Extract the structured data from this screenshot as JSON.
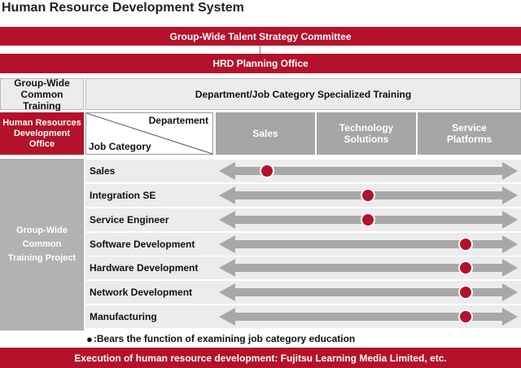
{
  "title": "Human Resource Development System",
  "committee": "Group-Wide Talent Strategy Committee",
  "planning_office": "HRD Planning Office",
  "common_training": "Group-Wide Common Training",
  "specialized_training": "Department/Job Category Specialized Training",
  "hrd_office": "Human Resources Development Office",
  "project": "Group-Wide Common Training Project",
  "matrix": {
    "corner_top": "Departement",
    "corner_bottom": "Job Category",
    "departments": [
      "Sales",
      "Technology Solutions",
      "Service Platforms"
    ],
    "rows": [
      {
        "label": "Sales",
        "department": "Sales"
      },
      {
        "label": "Integration SE",
        "department": "Technology Solutions"
      },
      {
        "label": "Service Engineer",
        "department": "Technology Solutions"
      },
      {
        "label": "Software Development",
        "department": "Service Platforms"
      },
      {
        "label": "Hardware Development",
        "department": "Service Platforms"
      },
      {
        "label": "Network Development",
        "department": "Service Platforms"
      },
      {
        "label": "Manufacturing",
        "department": "Service Platforms"
      }
    ]
  },
  "legend": {
    "symbol": "●",
    "text": ":Bears the function of examining job category education"
  },
  "footer": "Execution of human resource development: Fujitsu Learning Media Limited, etc.",
  "colors": {
    "accent": "#b3122a",
    "arrow": "#a8a8a8"
  }
}
